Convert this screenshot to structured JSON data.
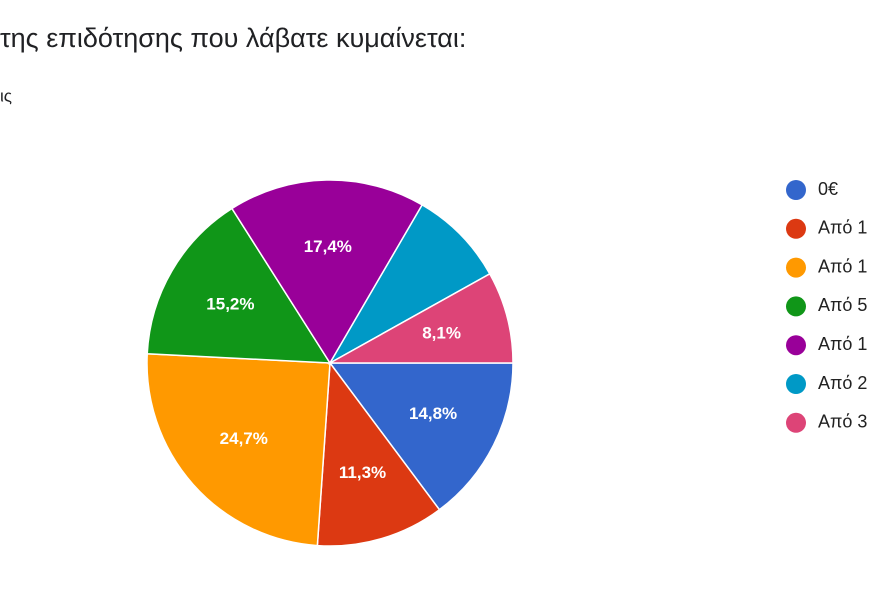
{
  "chart_data": {
    "type": "pie",
    "title": "της επιδότησης που λάβατε κυμαίνεται:",
    "subtitle": "ις",
    "categories": [
      "0€",
      "Από 1",
      "Από 1",
      "Από 5",
      "Από 1",
      "Από 2",
      "Από 3"
    ],
    "values": [
      14.8,
      11.3,
      24.7,
      15.2,
      17.4,
      8.5,
      8.1
    ],
    "value_labels": [
      "14,8%",
      "11,3%",
      "24,7%",
      "15,2%",
      "17,4%",
      null,
      "8,1%"
    ],
    "colors": [
      "#3366cc",
      "#dc3912",
      "#ff9900",
      "#109618",
      "#990099",
      "#0099c6",
      "#dd4477"
    ]
  }
}
